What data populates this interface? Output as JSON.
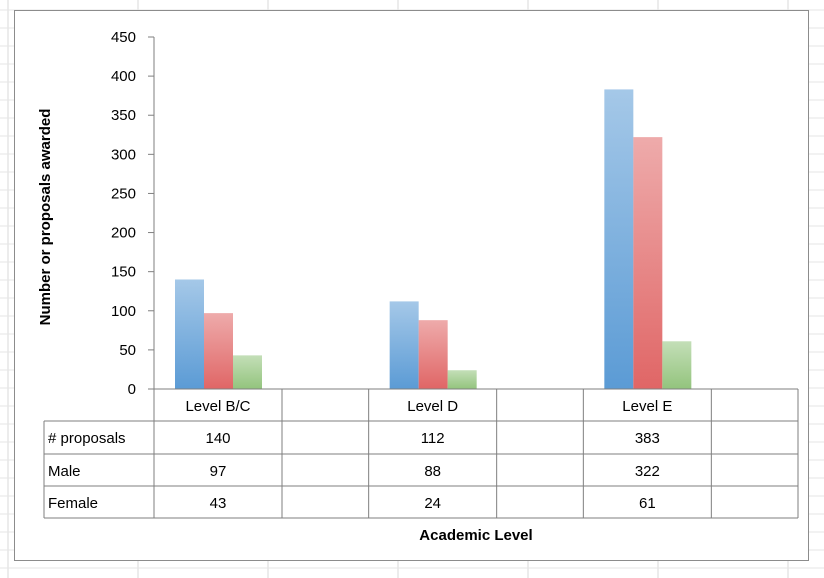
{
  "chart_data": {
    "type": "bar",
    "categories": [
      "Level B/C",
      "Level D",
      "Level E"
    ],
    "series": [
      {
        "name": "# proposals",
        "values": [
          140,
          112,
          383
        ],
        "color": "#5b9bd5"
      },
      {
        "name": "Male",
        "values": [
          97,
          88,
          322
        ],
        "color": "#e06666"
      },
      {
        "name": "Female",
        "values": [
          43,
          24,
          61
        ],
        "color": "#93c47d"
      }
    ],
    "y_ticks": [
      "0",
      "50",
      "100",
      "150",
      "200",
      "250",
      "300",
      "350",
      "400",
      "450"
    ],
    "ylim": [
      0,
      450
    ],
    "ylabel": "Number or proposals awarded",
    "xlabel": "Academic Level",
    "legend": "data-table",
    "grid": false
  }
}
